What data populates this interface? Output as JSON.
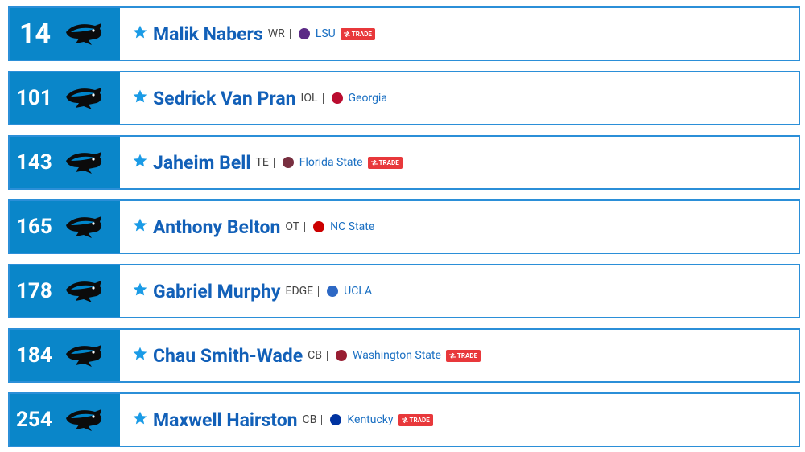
{
  "picks": [
    {
      "number": 14,
      "name": "Malik Nabers",
      "position": "WR",
      "school": "LSU",
      "badge": "TRADE"
    },
    {
      "number": 101,
      "name": "Sedrick Van Pran",
      "position": "IOL",
      "school": "Georgia"
    },
    {
      "number": 143,
      "name": "Jaheim Bell",
      "position": "TE",
      "school": "Florida State",
      "badge": "TRADE"
    },
    {
      "number": 165,
      "name": "Anthony Belton",
      "position": "OT",
      "school": "NC State"
    },
    {
      "number": 178,
      "name": "Gabriel Murphy",
      "position": "EDGE",
      "school": "UCLA"
    },
    {
      "number": 184,
      "name": "Chau Smith-Wade",
      "position": "CB",
      "school": "Washington State",
      "badge": "TRADE"
    },
    {
      "number": 254,
      "name": "Maxwell Hairston",
      "position": "CB",
      "school": "Kentucky",
      "badge": "TRADE"
    }
  ]
}
